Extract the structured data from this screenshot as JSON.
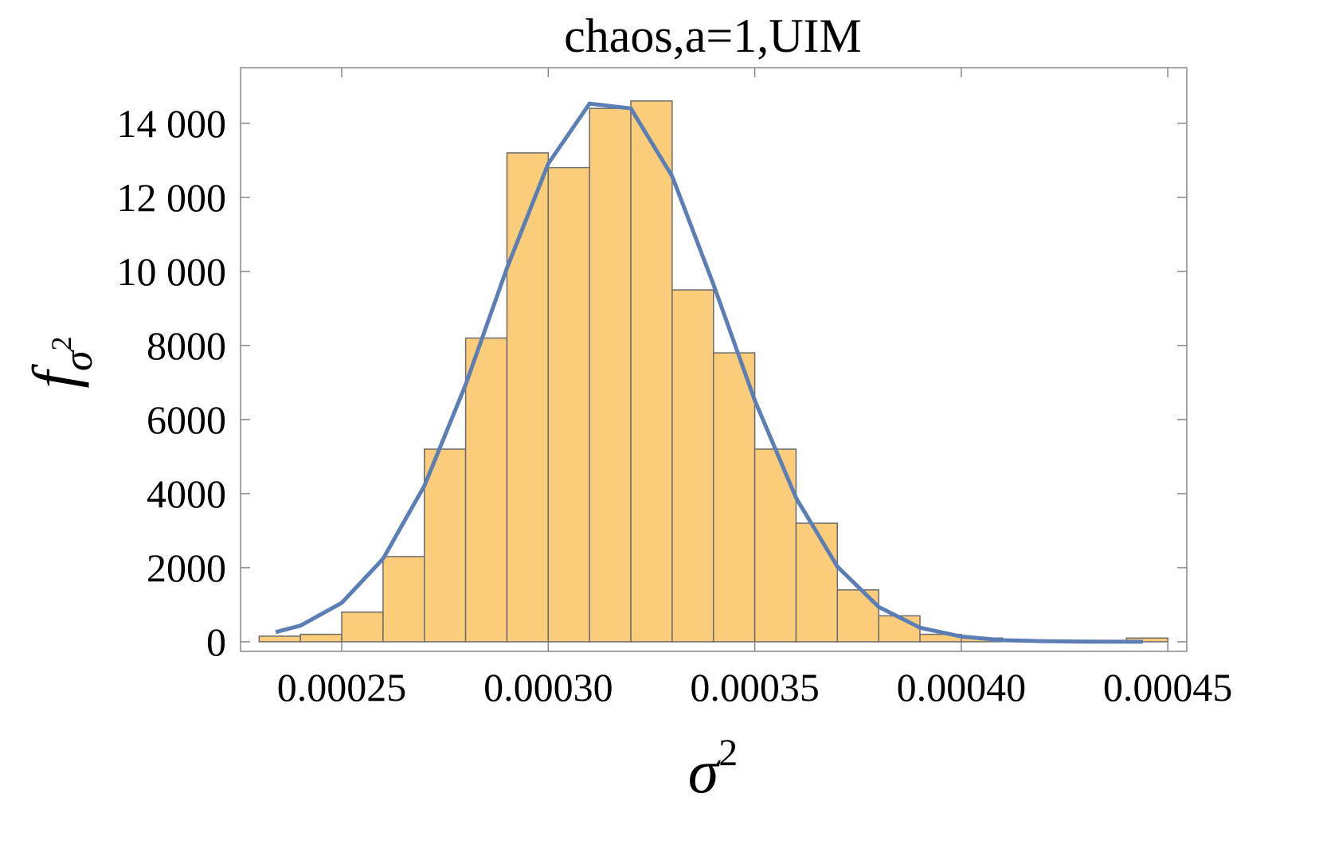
{
  "chart_data": {
    "type": "histogram",
    "title": "chaos,a=1,UIM",
    "xlabel": [
      "σ",
      "2"
    ],
    "ylabel": [
      "f",
      "σ",
      "2"
    ],
    "bins": [
      0.00023,
      0.00024,
      0.00025,
      0.00026,
      0.00027,
      0.00028,
      0.00029,
      0.0003,
      0.00031,
      0.00032,
      0.00033,
      0.00034,
      0.00035,
      0.00036,
      0.00037,
      0.00038,
      0.00039,
      0.0004,
      0.00041,
      0.00042,
      0.00043,
      0.00044,
      0.00045
    ],
    "counts": [
      150,
      200,
      800,
      2300,
      5200,
      8200,
      13200,
      12800,
      14400,
      14600,
      9500,
      7800,
      5200,
      3200,
      1400,
      700,
      200,
      100,
      0,
      0,
      0,
      100
    ],
    "color": "#fbcd7a",
    "edgecolor": "#6b6b6b",
    "curve": {
      "x": [
        0.000234,
        0.00024,
        0.00025,
        0.00026,
        0.00027,
        0.00028,
        0.00029,
        0.0003,
        0.00031,
        0.00032,
        0.00033,
        0.00034,
        0.00035,
        0.00036,
        0.00037,
        0.00038,
        0.00039,
        0.0004,
        0.00041,
        0.00042,
        0.00043,
        0.00044,
        0.000444
      ],
      "values": [
        260,
        435,
        1050,
        2240,
        4210,
        6940,
        10090,
        12910,
        14530,
        14400,
        12570,
        9650,
        6520,
        3880,
        2030,
        940,
        380,
        140,
        40,
        12,
        4,
        1,
        0
      ],
      "color": "#5b7fb5"
    },
    "xlim": [
      0.0002255,
      0.0004546
    ],
    "ylim": [
      -260,
      15500
    ],
    "xticks": [
      0.00025,
      {
        "value": 0.0003,
        "label": "0.00030"
      },
      0.00035,
      {
        "value": 0.0004,
        "label": "0.00040"
      },
      0.00045
    ],
    "yticks": [
      0,
      2000,
      4000,
      6000,
      8000,
      {
        "value": 10000,
        "label": "10 000"
      },
      {
        "value": 12000,
        "label": "12 000"
      },
      {
        "value": 14000,
        "label": "14 000"
      }
    ]
  }
}
